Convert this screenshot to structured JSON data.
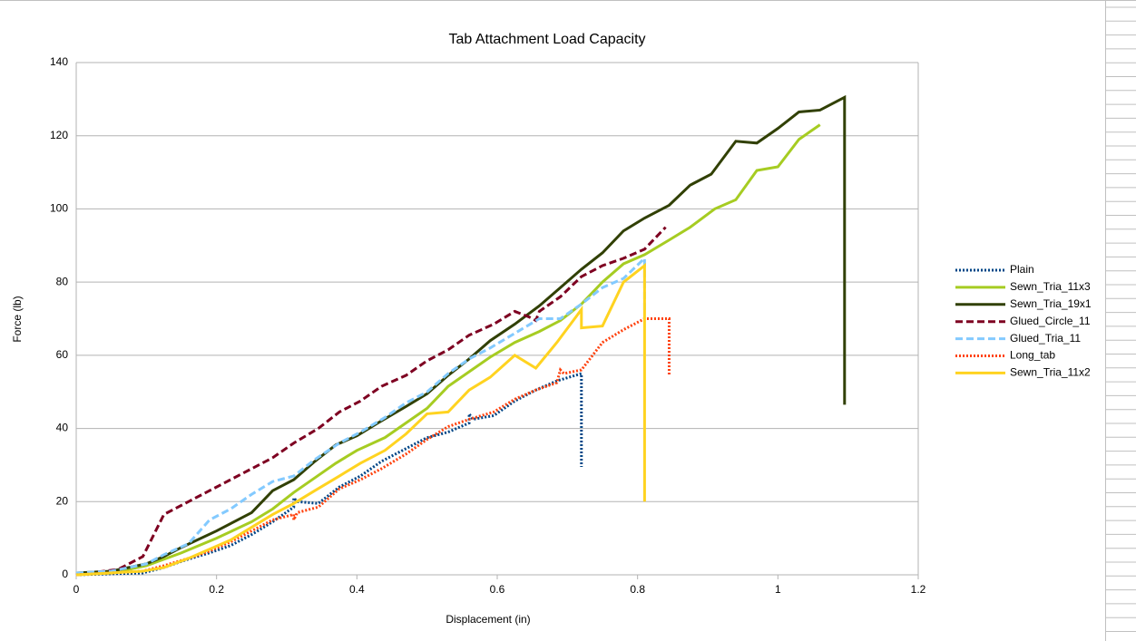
{
  "chart_data": {
    "type": "line",
    "title": "Tab Attachment Load Capacity",
    "x_label": "Displacement (in)",
    "y_label": "Force (lb)",
    "xlim": [
      0,
      1.2
    ],
    "xticks": [
      0,
      0.2,
      0.4,
      0.6,
      0.8,
      1,
      1.2
    ],
    "ylim": [
      0,
      140
    ],
    "yticks": [
      0,
      20,
      40,
      60,
      80,
      100,
      120,
      140
    ],
    "grid": true,
    "legend": "right",
    "series": [
      {
        "name": "Plain",
        "color": "#004586",
        "style": "dotted",
        "x": [
          0,
          0.095,
          0.125,
          0.155,
          0.19,
          0.22,
          0.25,
          0.28,
          0.31,
          0.31,
          0.315,
          0.345,
          0.375,
          0.405,
          0.435,
          0.47,
          0.5,
          0.53,
          0.56,
          0.56,
          0.565,
          0.595,
          0.625,
          0.655,
          0.685,
          0.72,
          0.72
        ],
        "values": [
          0,
          0.5,
          2,
          4,
          6,
          8,
          11,
          14.5,
          18.5,
          21,
          20,
          19.5,
          24,
          27,
          31,
          34.5,
          37.5,
          39,
          41.5,
          44,
          42.5,
          43.5,
          47.5,
          50.5,
          53,
          55,
          29.5
        ]
      },
      {
        "name": "Sewn_Tria_11x3",
        "color": "#a6cc22",
        "style": "solid",
        "x": [
          0,
          0.05,
          0.1,
          0.15,
          0.2,
          0.25,
          0.28,
          0.31,
          0.34,
          0.37,
          0.4,
          0.44,
          0.47,
          0.5,
          0.53,
          0.56,
          0.59,
          0.625,
          0.66,
          0.69,
          0.72,
          0.75,
          0.78,
          0.81,
          0.845,
          0.875,
          0.91,
          0.94,
          0.97,
          1.0,
          1.03,
          1.06
        ],
        "values": [
          0,
          0.5,
          2.5,
          6,
          10,
          14.5,
          18,
          22.5,
          26.5,
          30.5,
          34,
          37.5,
          41.5,
          45.5,
          51.5,
          55.5,
          59.5,
          63.5,
          66.5,
          69.5,
          74,
          80,
          85,
          87.5,
          91.5,
          95,
          100,
          102.5,
          110.5,
          111.5,
          119,
          123
        ]
      },
      {
        "name": "Sewn_Tria_19x1",
        "color": "#314004",
        "style": "solid",
        "x": [
          0,
          0.05,
          0.1,
          0.125,
          0.15,
          0.2,
          0.25,
          0.28,
          0.31,
          0.34,
          0.37,
          0.4,
          0.43,
          0.47,
          0.5,
          0.53,
          0.56,
          0.59,
          0.625,
          0.66,
          0.69,
          0.72,
          0.75,
          0.78,
          0.81,
          0.845,
          0.875,
          0.905,
          0.94,
          0.97,
          1.0,
          1.03,
          1.06,
          1.095,
          1.095
        ],
        "values": [
          0.5,
          1,
          3,
          5,
          7.5,
          12,
          17,
          23,
          26,
          31,
          35.5,
          38,
          41.5,
          46,
          49.5,
          54.5,
          59,
          64,
          68.5,
          73.5,
          78.5,
          83.5,
          88,
          94,
          97.5,
          101,
          106.5,
          109.5,
          118.5,
          118,
          122,
          126.5,
          127,
          130.5,
          46.5
        ]
      },
      {
        "name": "Glued_Circle_11",
        "color": "#7e0021",
        "style": "dashed",
        "x": [
          0,
          0.06,
          0.095,
          0.125,
          0.16,
          0.22,
          0.28,
          0.31,
          0.345,
          0.375,
          0.405,
          0.435,
          0.47,
          0.5,
          0.53,
          0.56,
          0.595,
          0.625,
          0.645,
          0.655,
          0.66,
          0.69,
          0.72,
          0.75,
          0.78,
          0.81,
          0.84
        ],
        "values": [
          0,
          1.5,
          5,
          16.5,
          20,
          26,
          32,
          36,
          40,
          44.5,
          47.5,
          51.5,
          54.5,
          58.5,
          61.5,
          65.5,
          68.5,
          72,
          70.5,
          69.5,
          72,
          76,
          81.5,
          84.5,
          86.5,
          89,
          95
        ]
      },
      {
        "name": "Glued_Tria_11",
        "color": "#83caff",
        "style": "dashed",
        "x": [
          0,
          0.05,
          0.1,
          0.125,
          0.16,
          0.19,
          0.22,
          0.25,
          0.28,
          0.31,
          0.34,
          0.375,
          0.405,
          0.44,
          0.47,
          0.5,
          0.53,
          0.56,
          0.59,
          0.625,
          0.66,
          0.69,
          0.72,
          0.75,
          0.78,
          0.81,
          0.81
        ],
        "values": [
          0.5,
          1,
          3,
          5.5,
          8.5,
          15,
          18,
          22,
          25.5,
          27,
          31.5,
          36,
          39,
          43,
          47,
          50,
          55,
          59,
          62,
          66,
          70,
          70,
          74,
          78.5,
          81,
          86.5,
          72
        ]
      },
      {
        "name": "Long_tab",
        "color": "#ff420e",
        "style": "dotted",
        "x": [
          0,
          0.095,
          0.125,
          0.16,
          0.19,
          0.22,
          0.25,
          0.28,
          0.31,
          0.31,
          0.315,
          0.345,
          0.375,
          0.405,
          0.435,
          0.47,
          0.5,
          0.53,
          0.56,
          0.595,
          0.625,
          0.655,
          0.685,
          0.69,
          0.695,
          0.72,
          0.75,
          0.78,
          0.81,
          0.845,
          0.845
        ],
        "values": [
          0,
          1,
          2.5,
          4.5,
          6.5,
          9,
          12,
          15,
          16.5,
          15,
          17,
          18.5,
          23.5,
          26,
          29,
          33,
          37,
          40.5,
          42.5,
          44.5,
          48,
          50.5,
          52.5,
          56,
          55,
          56,
          63.5,
          67,
          70,
          70,
          54.5
        ]
      },
      {
        "name": "Sewn_Tria_11x2",
        "color": "#ffd320",
        "style": "solid",
        "x": [
          0,
          0.095,
          0.125,
          0.16,
          0.19,
          0.22,
          0.25,
          0.28,
          0.31,
          0.34,
          0.375,
          0.405,
          0.44,
          0.47,
          0.5,
          0.53,
          0.56,
          0.59,
          0.625,
          0.655,
          0.685,
          0.72,
          0.72,
          0.75,
          0.78,
          0.81,
          0.81
        ],
        "values": [
          0,
          1,
          2,
          4.5,
          7,
          9.5,
          13,
          16.5,
          19.5,
          23,
          27,
          30.5,
          34,
          38.5,
          44,
          44.5,
          50.5,
          54,
          60,
          56.5,
          63.5,
          72.5,
          67.5,
          68,
          80,
          84.5,
          20
        ]
      }
    ]
  }
}
